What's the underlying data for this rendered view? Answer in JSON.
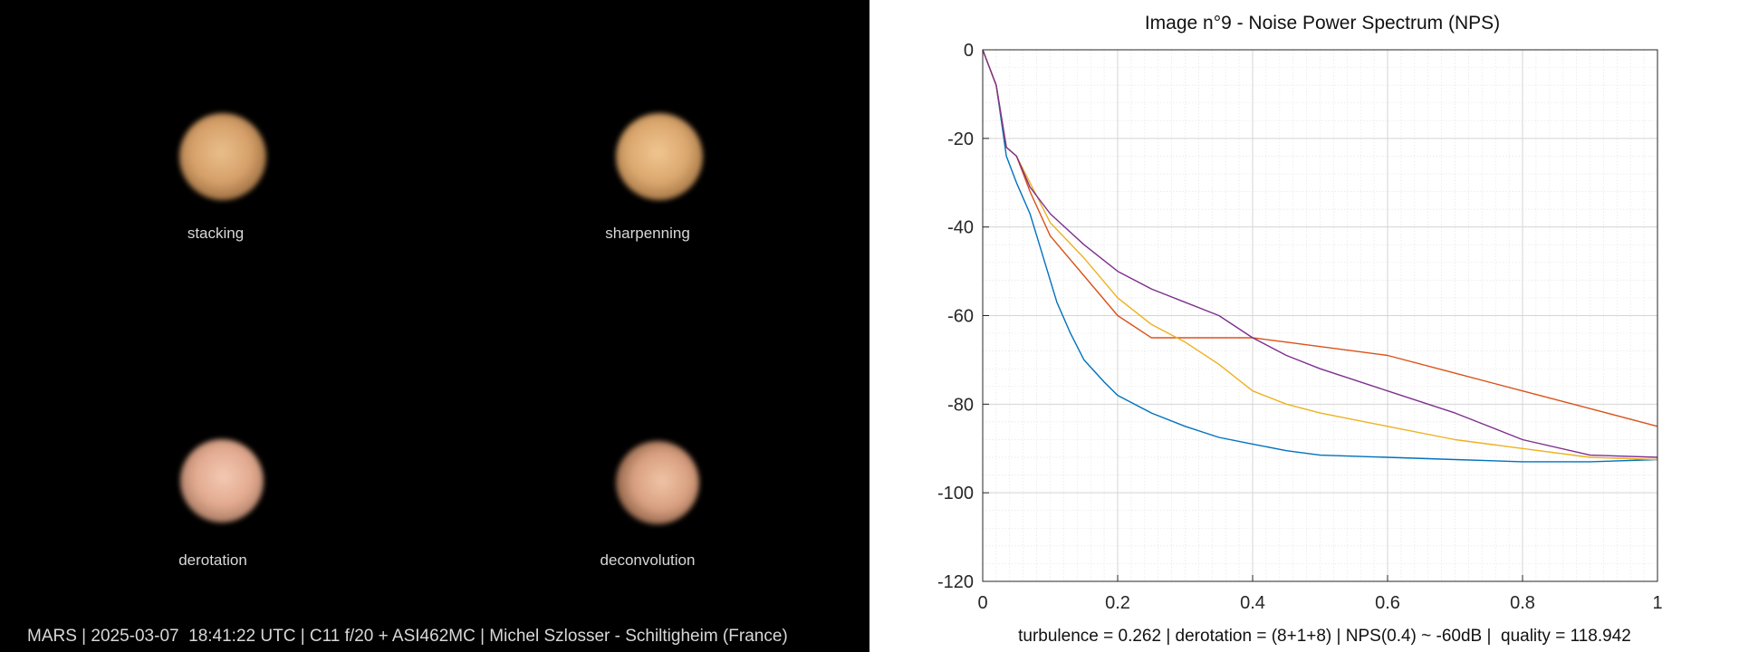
{
  "images": {
    "stacking": {
      "label": "stacking"
    },
    "sharpening": {
      "label": "sharpenning"
    },
    "derotation": {
      "label": "derotation"
    },
    "deconvolution": {
      "label": "deconvolution"
    }
  },
  "caption": "MARS | 2025-03-07  18:41:22 UTC | C11 f/20 + ASI462MC | Michel Szlosser - Schiltigheim (France)",
  "stats_line": "turbulence = 0.262 | derotation = (8+1+8) | NPS(0.4) ~ -60dB |  quality = 118.942",
  "chart_data": {
    "type": "line",
    "title": "Image n°9 - Noise Power Spectrum (NPS)",
    "xlabel": "",
    "ylabel": "",
    "xlim": [
      0,
      1
    ],
    "ylim": [
      -120,
      0
    ],
    "xticks": [
      "0",
      "0.2",
      "0.4",
      "0.6",
      "0.8",
      "1"
    ],
    "yticks": [
      "0",
      "-20",
      "-40",
      "-60",
      "-80",
      "-100",
      "-120"
    ],
    "grid": true,
    "series": [
      {
        "color": "#0072bd",
        "x": [
          0,
          0.02,
          0.035,
          0.05,
          0.07,
          0.09,
          0.11,
          0.13,
          0.15,
          0.18,
          0.2,
          0.25,
          0.3,
          0.35,
          0.4,
          0.45,
          0.5,
          0.6,
          0.7,
          0.8,
          0.9,
          1.0
        ],
        "y": [
          0,
          -8,
          -24,
          -30,
          -37,
          -47,
          -57,
          -64,
          -70,
          -75,
          -78,
          -82,
          -85,
          -87.5,
          -89,
          -90.5,
          -91.5,
          -92,
          -92.5,
          -93,
          -93,
          -92.5
        ]
      },
      {
        "color": "#d95319",
        "x": [
          0,
          0.02,
          0.035,
          0.05,
          0.07,
          0.1,
          0.15,
          0.2,
          0.25,
          0.3,
          0.35,
          0.4,
          0.45,
          0.5,
          0.6,
          0.7,
          0.8,
          0.9,
          1.0
        ],
        "y": [
          0,
          -8,
          -22,
          -24,
          -32,
          -42,
          -51,
          -60,
          -65,
          -65,
          -65,
          -65,
          -66,
          -67,
          -69,
          -73,
          -77,
          -81,
          -85
        ]
      },
      {
        "color": "#edb120",
        "x": [
          0,
          0.02,
          0.035,
          0.05,
          0.07,
          0.1,
          0.15,
          0.2,
          0.25,
          0.3,
          0.35,
          0.4,
          0.45,
          0.5,
          0.6,
          0.7,
          0.8,
          0.9,
          1.0
        ],
        "y": [
          0,
          -8,
          -22,
          -24,
          -30,
          -39,
          -47,
          -56,
          -62,
          -66,
          -71,
          -77,
          -80,
          -82,
          -85,
          -88,
          -90,
          -92,
          -92.5
        ]
      },
      {
        "color": "#7e2f8e",
        "x": [
          0,
          0.02,
          0.035,
          0.05,
          0.07,
          0.1,
          0.15,
          0.2,
          0.25,
          0.3,
          0.35,
          0.4,
          0.45,
          0.5,
          0.6,
          0.7,
          0.8,
          0.9,
          1.0
        ],
        "y": [
          0,
          -8,
          -22,
          -24,
          -31,
          -37,
          -44,
          -50,
          -54,
          -57,
          -60,
          -65,
          -69,
          -72,
          -77,
          -82,
          -88,
          -91.5,
          -92
        ]
      }
    ]
  }
}
